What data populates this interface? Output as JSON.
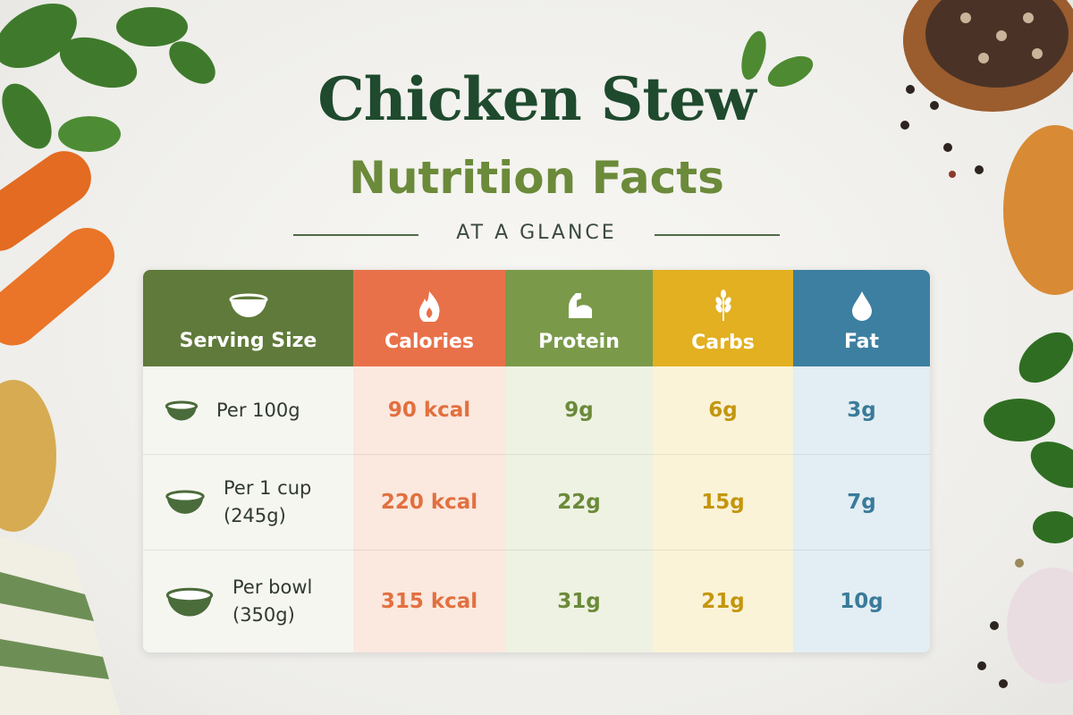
{
  "header": {
    "title": "Chicken Stew",
    "subtitle": "Nutrition Facts",
    "tagline": "AT A GLANCE"
  },
  "table": {
    "columns": [
      "Serving Size",
      "Calories",
      "Protein",
      "Carbs",
      "Fat"
    ],
    "rows": [
      [
        "Per 100g",
        "90 kcal",
        "9g",
        "6g",
        "3g"
      ],
      [
        "Per 1 cup (245g)",
        "220 kcal",
        "22g",
        "15g",
        "7g"
      ],
      [
        "Per bowl (350g)",
        "315 kcal",
        "31g",
        "21g",
        "10g"
      ]
    ]
  }
}
